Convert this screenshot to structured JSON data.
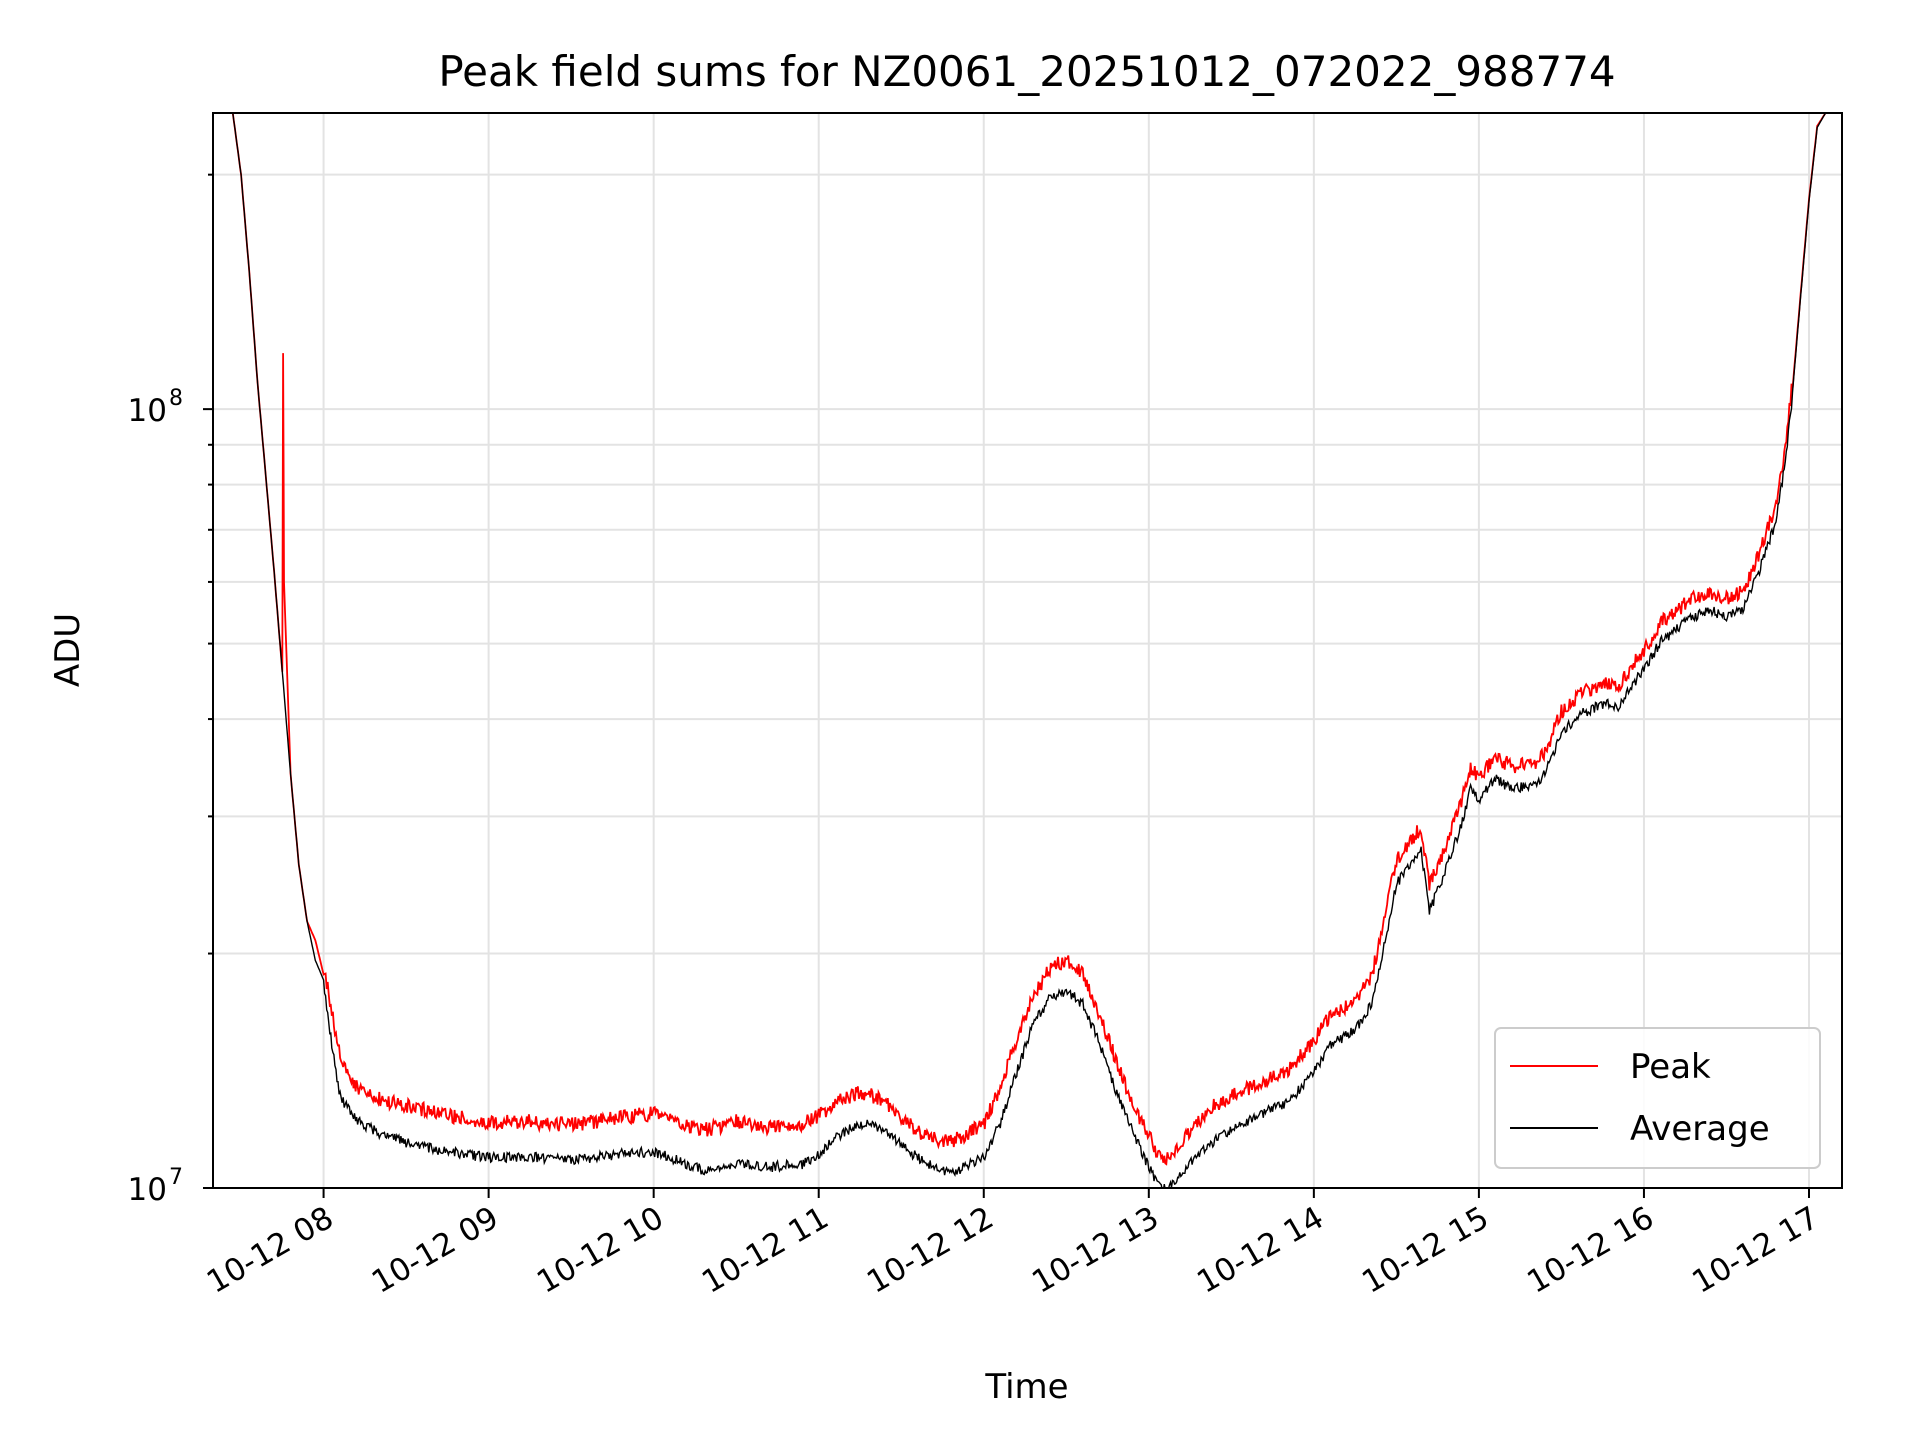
{
  "chart_data": {
    "type": "line",
    "title": "Peak field sums for NZ0061_20251012_072022_988774",
    "xlabel": "Time",
    "ylabel": "ADU",
    "yscale": "log",
    "xlim": [
      7.33,
      17.2
    ],
    "ylim": [
      10000000,
      240000000
    ],
    "grid": true,
    "legend_position": "lower-right",
    "x_tick_labels": [
      "10-12 08",
      "10-12 09",
      "10-12 10",
      "10-12 11",
      "10-12 12",
      "10-12 13",
      "10-12 14",
      "10-12 15",
      "10-12 16",
      "10-12 17"
    ],
    "x_tick_values": [
      8,
      9,
      10,
      11,
      12,
      13,
      14,
      15,
      16,
      17
    ],
    "y_major_ticks": [
      {
        "value": 10000000,
        "base": "10",
        "exp": "7"
      },
      {
        "value": 100000000,
        "base": "10",
        "exp": "8"
      }
    ],
    "y_minor_ticks": [
      20000000,
      30000000,
      40000000,
      50000000,
      60000000,
      70000000,
      80000000,
      90000000,
      200000000
    ],
    "series": [
      {
        "name": "Average",
        "color": "#000000",
        "x": [
          7.45,
          7.5,
          7.55,
          7.6,
          7.65,
          7.7,
          7.75,
          7.8,
          7.85,
          7.9,
          7.95,
          8.0,
          8.05,
          8.1,
          8.2,
          8.35,
          8.5,
          8.75,
          9.0,
          9.25,
          9.5,
          9.75,
          10.0,
          10.15,
          10.3,
          10.5,
          10.7,
          10.9,
          11.0,
          11.1,
          11.25,
          11.4,
          11.5,
          11.65,
          11.8,
          12.0,
          12.1,
          12.2,
          12.3,
          12.4,
          12.5,
          12.6,
          12.7,
          12.8,
          12.9,
          13.0,
          13.05,
          13.1,
          13.15,
          13.25,
          13.4,
          13.55,
          13.7,
          13.85,
          14.0,
          14.1,
          14.25,
          14.35,
          14.4,
          14.5,
          14.6,
          14.65,
          14.7,
          14.8,
          14.9,
          14.95,
          15.0,
          15.1,
          15.2,
          15.35,
          15.4,
          15.5,
          15.6,
          15.7,
          15.8,
          15.85,
          15.9,
          16.0,
          16.1,
          16.2,
          16.3,
          16.4,
          16.5,
          16.6,
          16.7,
          16.8,
          16.85,
          16.9,
          16.95,
          17.0,
          17.05,
          17.1
        ],
        "y": [
          240000000,
          200000000,
          150000000,
          108000000,
          82000000,
          62000000,
          46000000,
          34000000,
          26000000,
          22000000,
          19600000,
          18500000,
          15500000,
          13300000,
          12400000,
          11900000,
          11600000,
          11300000,
          11100000,
          11150000,
          11000000,
          11200000,
          11300000,
          11000000,
          10700000,
          10900000,
          10800000,
          10900000,
          11200000,
          11800000,
          12300000,
          12100000,
          11500000,
          10900000,
          10600000,
          11100000,
          12300000,
          14300000,
          16500000,
          17800000,
          18200000,
          17500000,
          15600000,
          13500000,
          12000000,
          10800000,
          10300000,
          10100000,
          10250000,
          10900000,
          11700000,
          12200000,
          12700000,
          13100000,
          14300000,
          15500000,
          16200000,
          17500000,
          19500000,
          25000000,
          26500000,
          27500000,
          23000000,
          26000000,
          30000000,
          33000000,
          32000000,
          34000000,
          33000000,
          33500000,
          34500000,
          39000000,
          41000000,
          42000000,
          42500000,
          42000000,
          44000000,
          47000000,
          51000000,
          53000000,
          55000000,
          56000000,
          55000000,
          56000000,
          63000000,
          73000000,
          85000000,
          105000000,
          140000000,
          185000000,
          230000000,
          240000000
        ]
      },
      {
        "name": "Peak",
        "color": "#ff0000",
        "x": [
          7.45,
          7.5,
          7.55,
          7.6,
          7.65,
          7.7,
          7.75,
          7.755,
          7.76,
          7.8,
          7.85,
          7.9,
          7.95,
          8.0,
          8.05,
          8.1,
          8.2,
          8.35,
          8.5,
          8.75,
          9.0,
          9.25,
          9.5,
          9.75,
          10.0,
          10.15,
          10.3,
          10.5,
          10.7,
          10.9,
          11.0,
          11.1,
          11.25,
          11.4,
          11.5,
          11.65,
          11.8,
          12.0,
          12.1,
          12.2,
          12.3,
          12.4,
          12.5,
          12.6,
          12.7,
          12.8,
          12.9,
          13.0,
          13.05,
          13.1,
          13.15,
          13.25,
          13.4,
          13.55,
          13.7,
          13.85,
          14.0,
          14.1,
          14.25,
          14.35,
          14.4,
          14.5,
          14.6,
          14.65,
          14.7,
          14.8,
          14.9,
          14.95,
          15.0,
          15.1,
          15.2,
          15.35,
          15.4,
          15.5,
          15.6,
          15.7,
          15.8,
          15.85,
          15.9,
          16.0,
          16.1,
          16.2,
          16.3,
          16.4,
          16.5,
          16.6,
          16.7,
          16.8,
          16.85,
          16.9,
          16.95,
          17.0,
          17.05,
          17.1
        ],
        "y": [
          240000000,
          200000000,
          150000000,
          108000000,
          82000000,
          62000000,
          46000000,
          118000000,
          60000000,
          34000000,
          26000000,
          22000000,
          20800000,
          18800000,
          16500000,
          14400000,
          13200000,
          12700000,
          12500000,
          12100000,
          11900000,
          11900000,
          11800000,
          12000000,
          12200000,
          11900000,
          11600000,
          11900000,
          11700000,
          11800000,
          12100000,
          12600000,
          13000000,
          12700000,
          12000000,
          11400000,
          11200000,
          11800000,
          13200000,
          15200000,
          17200000,
          18700000,
          19200000,
          18500000,
          16400000,
          14300000,
          12600000,
          11400000,
          10900000,
          10700000,
          10900000,
          11600000,
          12500000,
          13000000,
          13400000,
          13900000,
          15100000,
          16300000,
          17000000,
          18200000,
          20500000,
          25800000,
          27500000,
          28500000,
          24000000,
          27000000,
          31000000,
          34000000,
          33000000,
          35000000,
          34000000,
          34500000,
          35500000,
          40000000,
          42000000,
          43000000,
          43500000,
          43000000,
          45000000,
          48000000,
          52000000,
          54000000,
          56000000,
          57000000,
          56000000,
          57000000,
          64000000,
          74000000,
          86000000,
          106000000,
          141000000,
          186000000,
          231000000,
          240000000
        ]
      }
    ]
  }
}
